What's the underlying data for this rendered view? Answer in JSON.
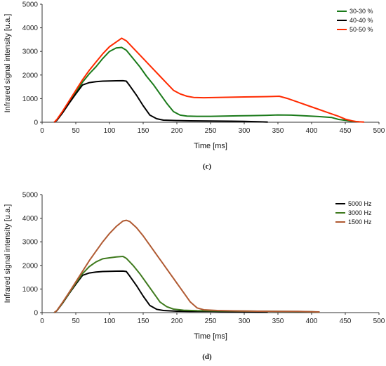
{
  "chart_data": [
    {
      "type": "line",
      "caption": "(c)",
      "xlabel": "Time [ms]",
      "ylabel": "Infrared signal intensity [u.a.]",
      "xlim": [
        0,
        500
      ],
      "ylim": [
        0,
        5000
      ],
      "xticks": [
        "0",
        "50",
        "100",
        "150",
        "200",
        "250",
        "300",
        "350",
        "400",
        "450",
        "500"
      ],
      "yticks": [
        "0",
        "1000",
        "2000",
        "3000",
        "4000",
        "5000"
      ],
      "grid": false,
      "legend_position": "top-right",
      "series": [
        {
          "name": "30-30 %",
          "color": "#1a7a1a",
          "points": [
            [
              18,
              0
            ],
            [
              22,
              100
            ],
            [
              30,
              420
            ],
            [
              40,
              850
            ],
            [
              50,
              1250
            ],
            [
              60,
              1700
            ],
            [
              70,
              2050
            ],
            [
              80,
              2350
            ],
            [
              90,
              2700
            ],
            [
              100,
              3000
            ],
            [
              110,
              3150
            ],
            [
              118,
              3170
            ],
            [
              125,
              3050
            ],
            [
              135,
              2700
            ],
            [
              145,
              2350
            ],
            [
              155,
              1950
            ],
            [
              165,
              1600
            ],
            [
              175,
              1200
            ],
            [
              185,
              800
            ],
            [
              195,
              450
            ],
            [
              205,
              300
            ],
            [
              215,
              260
            ],
            [
              230,
              250
            ],
            [
              250,
              250
            ],
            [
              270,
              260
            ],
            [
              290,
              270
            ],
            [
              310,
              280
            ],
            [
              330,
              290
            ],
            [
              350,
              310
            ],
            [
              370,
              300
            ],
            [
              390,
              270
            ],
            [
              410,
              240
            ],
            [
              430,
              200
            ],
            [
              440,
              120
            ],
            [
              450,
              80
            ],
            [
              460,
              40
            ],
            [
              470,
              20
            ]
          ]
        },
        {
          "name": "40-40 %",
          "color": "#000000",
          "points": [
            [
              18,
              0
            ],
            [
              22,
              80
            ],
            [
              30,
              380
            ],
            [
              40,
              800
            ],
            [
              50,
              1200
            ],
            [
              60,
              1580
            ],
            [
              70,
              1680
            ],
            [
              80,
              1720
            ],
            [
              90,
              1740
            ],
            [
              100,
              1750
            ],
            [
              110,
              1755
            ],
            [
              120,
              1760
            ],
            [
              125,
              1740
            ],
            [
              130,
              1550
            ],
            [
              140,
              1150
            ],
            [
              150,
              700
            ],
            [
              160,
              300
            ],
            [
              170,
              150
            ],
            [
              180,
              90
            ],
            [
              200,
              70
            ],
            [
              220,
              60
            ],
            [
              250,
              50
            ],
            [
              280,
              45
            ],
            [
              300,
              35
            ],
            [
              320,
              20
            ],
            [
              335,
              10
            ]
          ]
        },
        {
          "name": "50-50 %",
          "color": "#ff2a00",
          "points": [
            [
              18,
              0
            ],
            [
              22,
              120
            ],
            [
              30,
              450
            ],
            [
              40,
              900
            ],
            [
              50,
              1350
            ],
            [
              60,
              1800
            ],
            [
              70,
              2200
            ],
            [
              80,
              2550
            ],
            [
              90,
              2900
            ],
            [
              100,
              3200
            ],
            [
              110,
              3400
            ],
            [
              118,
              3560
            ],
            [
              125,
              3450
            ],
            [
              135,
              3150
            ],
            [
              145,
              2850
            ],
            [
              155,
              2550
            ],
            [
              165,
              2250
            ],
            [
              175,
              1950
            ],
            [
              185,
              1650
            ],
            [
              195,
              1350
            ],
            [
              205,
              1200
            ],
            [
              215,
              1100
            ],
            [
              225,
              1050
            ],
            [
              240,
              1040
            ],
            [
              260,
              1050
            ],
            [
              280,
              1060
            ],
            [
              300,
              1070
            ],
            [
              320,
              1080
            ],
            [
              340,
              1090
            ],
            [
              352,
              1100
            ],
            [
              365,
              1000
            ],
            [
              380,
              850
            ],
            [
              395,
              700
            ],
            [
              410,
              550
            ],
            [
              425,
              400
            ],
            [
              440,
              250
            ],
            [
              450,
              130
            ],
            [
              460,
              60
            ],
            [
              468,
              20
            ],
            [
              478,
              5
            ]
          ]
        }
      ]
    },
    {
      "type": "line",
      "caption": "(d)",
      "xlabel": "Time [ms]",
      "ylabel": "Infrared signal intensity [u.a.]",
      "xlim": [
        0,
        500
      ],
      "ylim": [
        0,
        5000
      ],
      "xticks": [
        "0",
        "50",
        "100",
        "150",
        "200",
        "250",
        "300",
        "350",
        "400",
        "450",
        "500"
      ],
      "yticks": [
        "0",
        "1000",
        "2000",
        "3000",
        "4000",
        "5000"
      ],
      "grid": false,
      "legend_position": "top-right",
      "series": [
        {
          "name": "5000 Hz",
          "color": "#000000",
          "points": [
            [
              18,
              0
            ],
            [
              22,
              80
            ],
            [
              30,
              380
            ],
            [
              40,
              800
            ],
            [
              50,
              1200
            ],
            [
              60,
              1580
            ],
            [
              70,
              1680
            ],
            [
              80,
              1720
            ],
            [
              90,
              1740
            ],
            [
              100,
              1750
            ],
            [
              110,
              1755
            ],
            [
              120,
              1760
            ],
            [
              125,
              1740
            ],
            [
              130,
              1550
            ],
            [
              140,
              1150
            ],
            [
              150,
              700
            ],
            [
              160,
              300
            ],
            [
              170,
              140
            ],
            [
              180,
              90
            ],
            [
              200,
              60
            ],
            [
              220,
              55
            ],
            [
              250,
              50
            ],
            [
              280,
              40
            ],
            [
              300,
              35
            ],
            [
              320,
              25
            ],
            [
              335,
              15
            ]
          ]
        },
        {
          "name": "3000 Hz",
          "color": "#3f7a1e",
          "points": [
            [
              18,
              0
            ],
            [
              22,
              90
            ],
            [
              30,
              400
            ],
            [
              40,
              820
            ],
            [
              50,
              1250
            ],
            [
              60,
              1650
            ],
            [
              70,
              1950
            ],
            [
              80,
              2150
            ],
            [
              90,
              2280
            ],
            [
              100,
              2320
            ],
            [
              110,
              2360
            ],
            [
              120,
              2380
            ],
            [
              125,
              2300
            ],
            [
              135,
              2000
            ],
            [
              145,
              1650
            ],
            [
              155,
              1250
            ],
            [
              165,
              850
            ],
            [
              175,
              450
            ],
            [
              185,
              250
            ],
            [
              195,
              150
            ],
            [
              210,
              100
            ],
            [
              230,
              80
            ],
            [
              260,
              70
            ],
            [
              290,
              65
            ],
            [
              320,
              60
            ],
            [
              350,
              55
            ],
            [
              380,
              45
            ],
            [
              400,
              35
            ],
            [
              412,
              25
            ]
          ]
        },
        {
          "name": "1500 Hz",
          "color": "#b05a32",
          "points": [
            [
              18,
              0
            ],
            [
              22,
              90
            ],
            [
              30,
              420
            ],
            [
              40,
              850
            ],
            [
              50,
              1300
            ],
            [
              60,
              1750
            ],
            [
              70,
              2200
            ],
            [
              80,
              2600
            ],
            [
              90,
              3000
            ],
            [
              100,
              3350
            ],
            [
              110,
              3650
            ],
            [
              120,
              3880
            ],
            [
              125,
              3910
            ],
            [
              130,
              3860
            ],
            [
              140,
              3600
            ],
            [
              150,
              3250
            ],
            [
              160,
              2850
            ],
            [
              170,
              2450
            ],
            [
              180,
              2050
            ],
            [
              190,
              1650
            ],
            [
              200,
              1250
            ],
            [
              210,
              850
            ],
            [
              220,
              450
            ],
            [
              230,
              200
            ],
            [
              240,
              120
            ],
            [
              260,
              90
            ],
            [
              290,
              70
            ],
            [
              320,
              60
            ],
            [
              350,
              55
            ],
            [
              380,
              50
            ],
            [
              400,
              40
            ],
            [
              412,
              30
            ]
          ]
        }
      ]
    }
  ]
}
